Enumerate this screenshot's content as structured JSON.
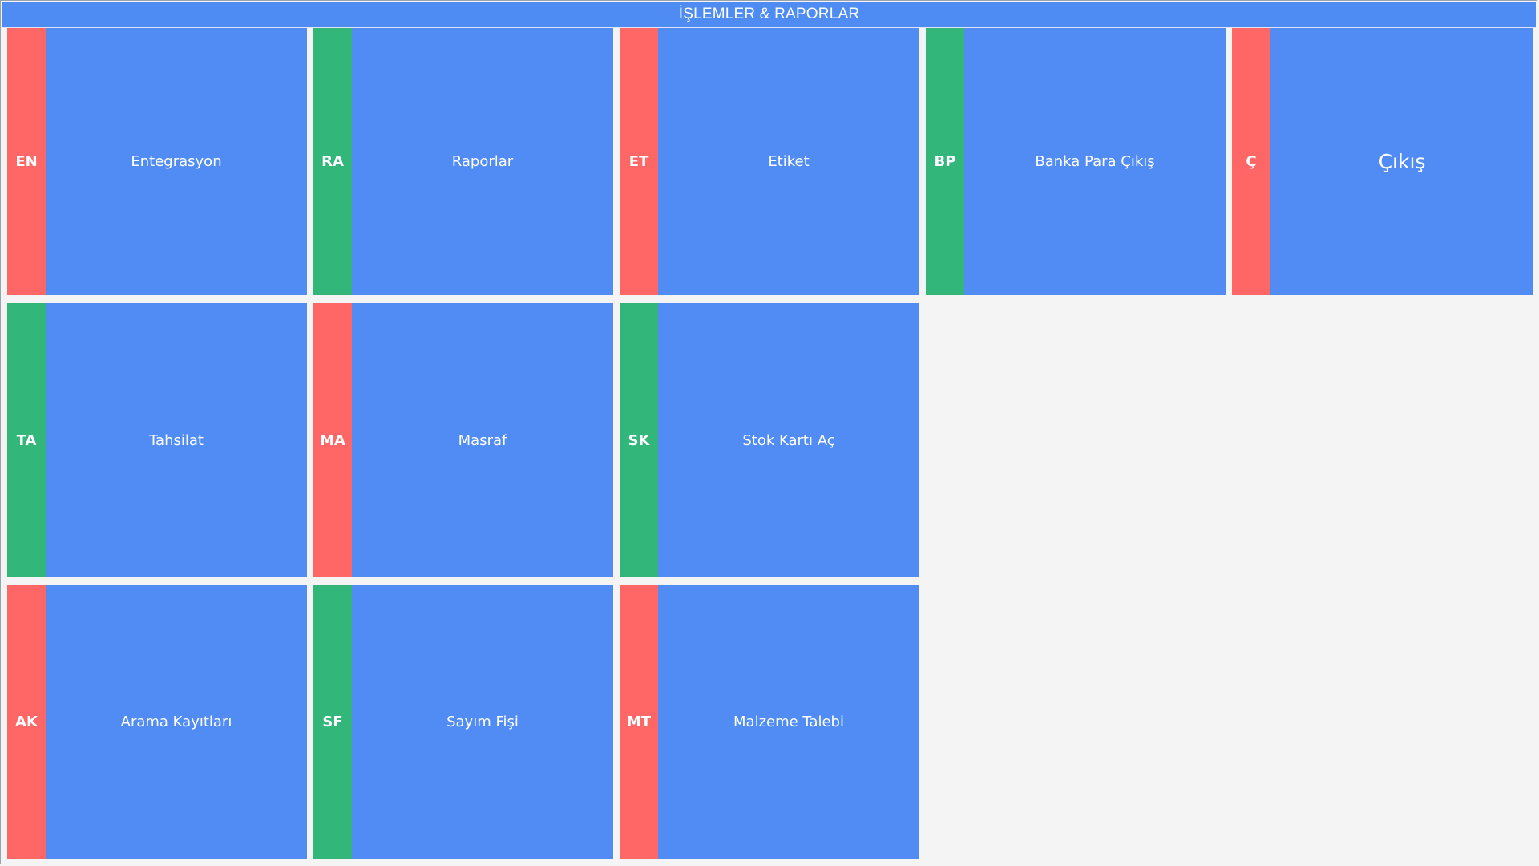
{
  "window": {
    "title": "İŞLEMLER & RAPORLAR"
  },
  "colors": {
    "tile": "#508cf4",
    "accent_red": "#ff6666",
    "accent_green": "#33b679",
    "header": "#4e8cf3",
    "background": "#f4f4f4"
  },
  "tiles": [
    {
      "badge": "EN",
      "label": "Entegrasyon",
      "accent": "red"
    },
    {
      "badge": "RA",
      "label": "Raporlar",
      "accent": "green"
    },
    {
      "badge": "ET",
      "label": "Etiket",
      "accent": "red"
    },
    {
      "badge": "BP",
      "label": "Banka Para Çıkış",
      "accent": "green"
    },
    {
      "badge": "Ç",
      "label": "Çıkış",
      "accent": "red"
    },
    {
      "badge": "TA",
      "label": "Tahsilat",
      "accent": "green"
    },
    {
      "badge": "MA",
      "label": "Masraf",
      "accent": "red"
    },
    {
      "badge": "SK",
      "label": "Stok Kartı Aç",
      "accent": "green"
    },
    {
      "badge": "AK",
      "label": "Arama Kayıtları",
      "accent": "red"
    },
    {
      "badge": "SF",
      "label": "Sayım Fişi",
      "accent": "green"
    },
    {
      "badge": "MT",
      "label": "Malzeme Talebi",
      "accent": "red"
    }
  ]
}
